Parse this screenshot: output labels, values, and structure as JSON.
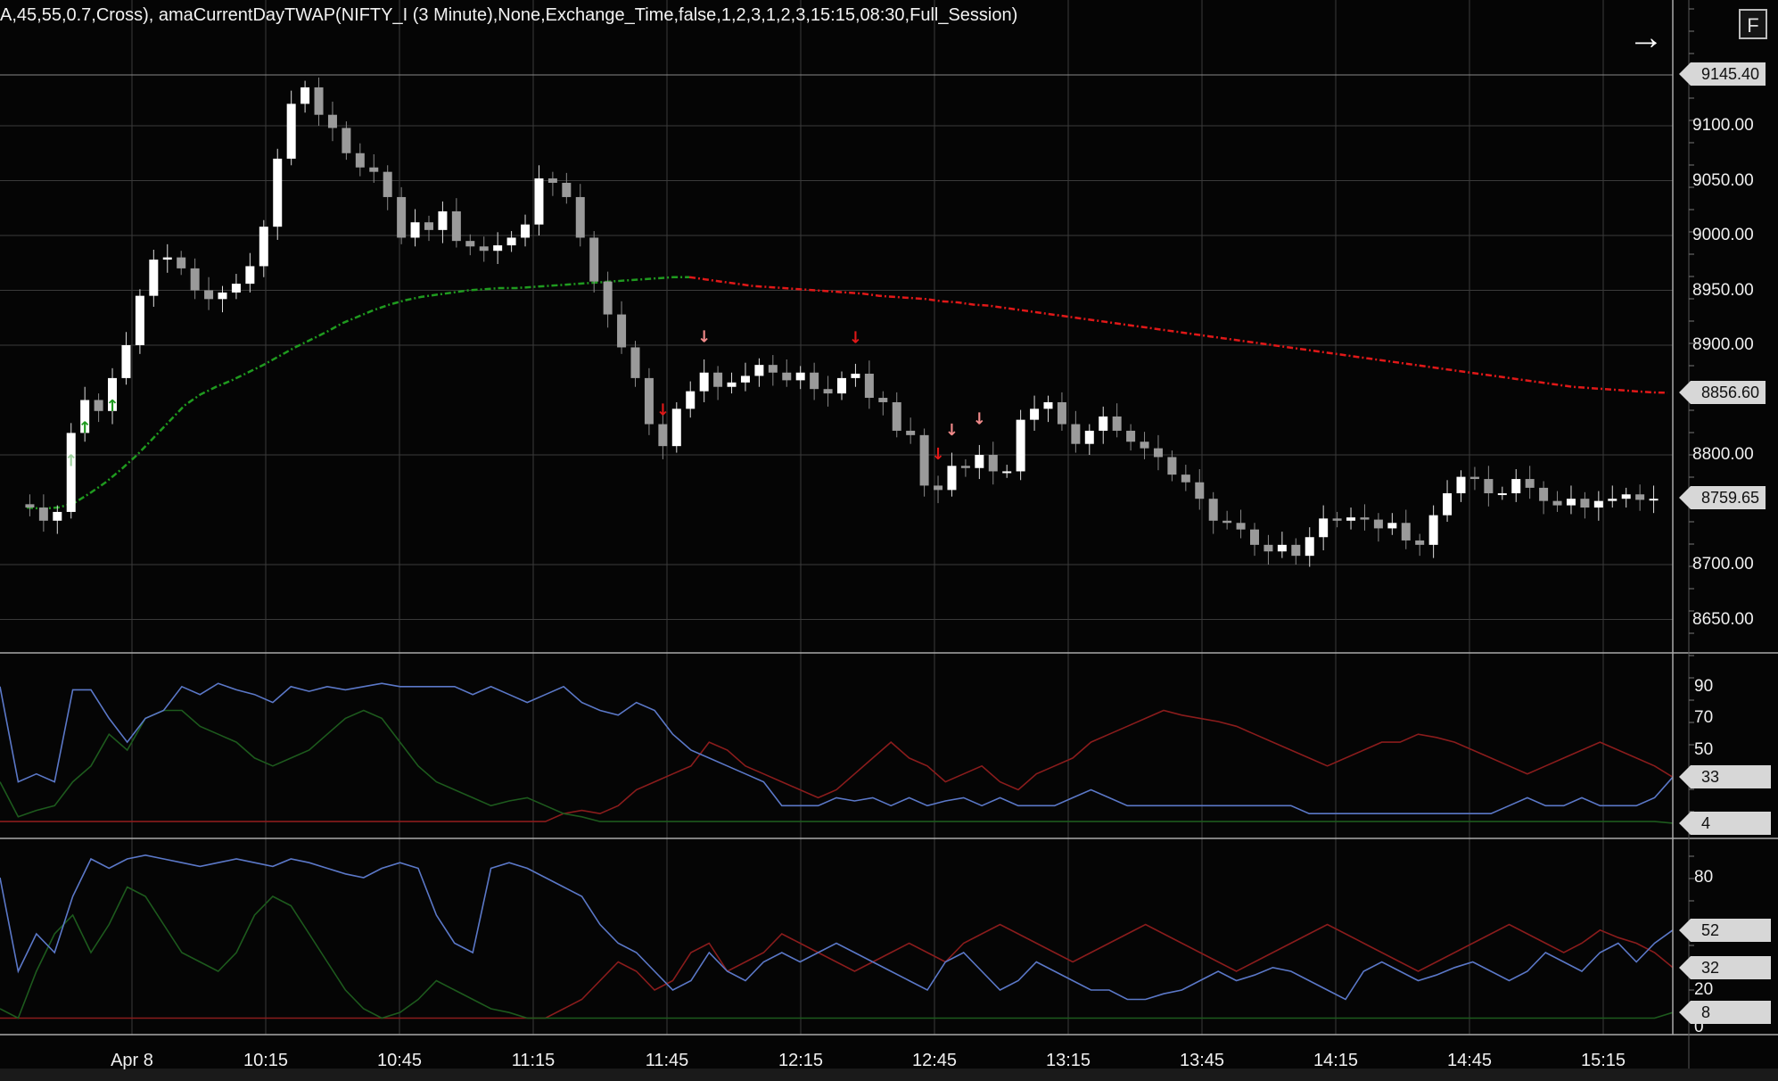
{
  "header": {
    "indicator_text": "A,45,55,0.7,Cross), amaCurrentDayTWAP(NIFTY_I (3 Minute),None,Exchange_Time,false,1,2,3,1,2,3,15:15,08:30,Full_Session)",
    "arrow_icon": "arrow-right-icon",
    "f_label": "F"
  },
  "price_axis": {
    "labels": [
      "9100.00",
      "9050.00",
      "9000.00",
      "8950.00",
      "8900.00",
      "8800.00",
      "8700.00",
      "8650.00"
    ],
    "values": [
      9100,
      9050,
      9000,
      8950,
      8900,
      8800,
      8700,
      8650
    ],
    "tags": {
      "high": "9145.40",
      "twap": "8856.60",
      "last": "8759.65"
    }
  },
  "osc1_axis": {
    "labels": [
      "90",
      "70",
      "50"
    ],
    "values": [
      90,
      70,
      50
    ],
    "tags": [
      "33",
      "4"
    ],
    "tag_values": [
      33,
      4
    ]
  },
  "osc2_axis": {
    "labels": [
      "80",
      "20",
      "0"
    ],
    "values": [
      80,
      20,
      0
    ],
    "tags": [
      "52",
      "32",
      "8"
    ],
    "tag_values": [
      52,
      32,
      8
    ]
  },
  "time_axis": {
    "labels": [
      "Apr 8",
      "10:15",
      "10:45",
      "11:15",
      "11:45",
      "12:15",
      "12:45",
      "13:15",
      "13:45",
      "14:15",
      "14:45",
      "15:15"
    ],
    "bar_index": [
      0,
      30,
      60,
      90,
      120,
      150,
      180,
      210,
      240,
      270,
      300,
      330
    ]
  },
  "colors": {
    "background": "#050505",
    "grid": "#3a3a3a",
    "up_candle": "#ffffff",
    "down_candle": "#9a9a9a",
    "twap_up": "#1f9a1f",
    "twap_down": "#e01818",
    "blue_line": "#5b78c8",
    "green_line": "#1d5a1d",
    "red_line": "#8a1c1c"
  },
  "chart_data": {
    "type": "candlestick",
    "timeframe": "3 Minute",
    "symbol": "NIFTY_I",
    "close_path": [
      8755,
      8752,
      8740,
      8748,
      8820,
      8850,
      8840,
      8870,
      8900,
      8945,
      8978,
      8980,
      8970,
      8950,
      8942,
      8948,
      8956,
      8972,
      9008,
      9070,
      9120,
      9135,
      9110,
      9098,
      9075,
      9062,
      9058,
      9035,
      8998,
      9012,
      9005,
      9022,
      8995,
      8990,
      8986,
      8991,
      8998,
      9010,
      9052,
      9048,
      9035,
      8998,
      8958,
      8928,
      8898,
      8870,
      8828,
      8808,
      8842,
      8858,
      8875,
      8862,
      8866,
      8872,
      8882,
      8875,
      8868,
      8875,
      8860,
      8856,
      8870,
      8874,
      8852,
      8848,
      8822,
      8818,
      8772,
      8768,
      8790,
      8788,
      8800,
      8785,
      8785,
      8832,
      8842,
      8848,
      8828,
      8810,
      8822,
      8835,
      8822,
      8812,
      8806,
      8798,
      8782,
      8775,
      8760,
      8740,
      8738,
      8732,
      8718,
      8712,
      8718,
      8708,
      8725,
      8742,
      8740,
      8743,
      8741,
      8733,
      8738,
      8722,
      8718,
      8745,
      8765,
      8780,
      8778,
      8765,
      8765,
      8778,
      8770,
      8758,
      8754,
      8760,
      8752,
      8758,
      8760,
      8764,
      8759,
      8760
    ],
    "twap_path": [
      8752,
      8751,
      8752,
      8756,
      8765,
      8775,
      8787,
      8800,
      8815,
      8830,
      8845,
      8855,
      8862,
      8868,
      8875,
      8882,
      8890,
      8898,
      8905,
      8912,
      8920,
      8926,
      8932,
      8937,
      8941,
      8944,
      8946,
      8948,
      8950,
      8951,
      8952,
      8952,
      8953,
      8954,
      8955,
      8956,
      8957,
      8958,
      8959,
      8960,
      8961,
      8962,
      8962,
      8960,
      8958,
      8956,
      8954,
      8953,
      8952,
      8951,
      8950,
      8949,
      8948,
      8947,
      8945,
      8944,
      8943,
      8942,
      8940,
      8939,
      8937,
      8936,
      8934,
      8932,
      8930,
      8928,
      8926,
      8924,
      8922,
      8920,
      8918,
      8916,
      8914,
      8912,
      8910,
      8908,
      8906,
      8904,
      8902,
      8900,
      8898,
      8896,
      8894,
      8892,
      8890,
      8888,
      8886,
      8884,
      8882,
      8880,
      8878,
      8876,
      8874,
      8872,
      8870,
      8868,
      8866,
      8864,
      8862,
      8861,
      8860,
      8859,
      8858,
      8857,
      8856.6
    ],
    "signals_up": [
      4,
      5,
      7
    ],
    "signals_down_strong": [
      47,
      61,
      67
    ],
    "signals_down_weak": [
      50,
      68,
      70
    ],
    "oscillator1": {
      "blue": [
        90,
        30,
        35,
        30,
        88,
        88,
        70,
        55,
        70,
        75,
        90,
        85,
        92,
        88,
        85,
        80,
        90,
        87,
        90,
        88,
        90,
        92,
        90,
        90,
        90,
        90,
        85,
        90,
        85,
        80,
        85,
        90,
        80,
        75,
        72,
        80,
        75,
        60,
        50,
        45,
        40,
        35,
        30,
        15,
        15,
        15,
        20,
        18,
        20,
        15,
        20,
        15,
        18,
        20,
        15,
        20,
        15,
        15,
        15,
        20,
        25,
        20,
        15,
        15,
        15,
        15,
        15,
        15,
        15,
        15,
        15,
        15,
        10,
        10,
        10,
        10,
        10,
        10,
        10,
        10,
        10,
        10,
        10,
        15,
        20,
        15,
        15,
        20,
        15,
        15,
        15,
        20,
        33
      ],
      "green": [
        30,
        8,
        12,
        15,
        30,
        40,
        60,
        50,
        70,
        75,
        75,
        65,
        60,
        55,
        45,
        40,
        45,
        50,
        60,
        70,
        75,
        70,
        55,
        40,
        30,
        25,
        20,
        15,
        18,
        20,
        15,
        10,
        8,
        5,
        5,
        5,
        5,
        5,
        5,
        5,
        5,
        5,
        5,
        5,
        5,
        5,
        5,
        5,
        5,
        5,
        5,
        5,
        5,
        5,
        5,
        5,
        5,
        5,
        5,
        5,
        5,
        5,
        5,
        5,
        5,
        5,
        5,
        5,
        5,
        5,
        5,
        5,
        5,
        5,
        5,
        5,
        5,
        5,
        5,
        5,
        5,
        5,
        5,
        5,
        5,
        5,
        5,
        5,
        5,
        5,
        5,
        5,
        4
      ],
      "red": [
        5,
        5,
        5,
        5,
        5,
        5,
        5,
        5,
        5,
        5,
        5,
        5,
        5,
        5,
        5,
        5,
        5,
        5,
        5,
        5,
        5,
        5,
        5,
        5,
        5,
        5,
        5,
        5,
        5,
        5,
        5,
        10,
        12,
        10,
        15,
        25,
        30,
        35,
        40,
        55,
        50,
        40,
        35,
        30,
        25,
        20,
        25,
        35,
        45,
        55,
        45,
        40,
        30,
        35,
        40,
        30,
        25,
        35,
        40,
        45,
        55,
        60,
        65,
        70,
        75,
        72,
        70,
        68,
        65,
        60,
        55,
        50,
        45,
        40,
        45,
        50,
        55,
        55,
        60,
        58,
        55,
        50,
        45,
        40,
        35,
        40,
        45,
        50,
        55,
        50,
        45,
        40,
        33
      ]
    },
    "oscillator2": {
      "blue": [
        80,
        30,
        50,
        40,
        70,
        90,
        85,
        90,
        92,
        90,
        88,
        86,
        88,
        90,
        88,
        86,
        90,
        88,
        85,
        82,
        80,
        85,
        88,
        85,
        60,
        45,
        40,
        85,
        88,
        85,
        80,
        75,
        70,
        55,
        45,
        40,
        30,
        20,
        25,
        40,
        30,
        25,
        35,
        40,
        35,
        40,
        45,
        40,
        35,
        30,
        25,
        20,
        35,
        40,
        30,
        20,
        25,
        35,
        30,
        25,
        20,
        20,
        15,
        15,
        18,
        20,
        25,
        30,
        25,
        28,
        32,
        30,
        25,
        20,
        15,
        30,
        35,
        30,
        25,
        28,
        32,
        35,
        30,
        25,
        30,
        40,
        35,
        30,
        40,
        45,
        35,
        45,
        52
      ],
      "green": [
        10,
        5,
        30,
        50,
        60,
        40,
        55,
        75,
        70,
        55,
        40,
        35,
        30,
        40,
        60,
        70,
        65,
        50,
        35,
        20,
        10,
        5,
        8,
        15,
        25,
        20,
        15,
        10,
        8,
        5,
        5,
        5,
        5,
        5,
        5,
        5,
        5,
        5,
        5,
        5,
        5,
        5,
        5,
        5,
        5,
        5,
        5,
        5,
        5,
        5,
        5,
        5,
        5,
        5,
        5,
        5,
        5,
        5,
        5,
        5,
        5,
        5,
        5,
        5,
        5,
        5,
        5,
        5,
        5,
        5,
        5,
        5,
        5,
        5,
        5,
        5,
        5,
        5,
        5,
        5,
        5,
        5,
        5,
        5,
        5,
        5,
        5,
        5,
        5,
        5,
        5,
        5,
        8
      ],
      "red": [
        5,
        5,
        5,
        5,
        5,
        5,
        5,
        5,
        5,
        5,
        5,
        5,
        5,
        5,
        5,
        5,
        5,
        5,
        5,
        5,
        5,
        5,
        5,
        5,
        5,
        5,
        5,
        5,
        5,
        5,
        5,
        10,
        15,
        25,
        35,
        30,
        20,
        25,
        40,
        45,
        30,
        35,
        40,
        50,
        45,
        40,
        35,
        30,
        35,
        40,
        45,
        40,
        35,
        45,
        50,
        55,
        50,
        45,
        40,
        35,
        40,
        45,
        50,
        55,
        50,
        45,
        40,
        35,
        30,
        35,
        40,
        45,
        50,
        55,
        50,
        45,
        40,
        35,
        30,
        35,
        40,
        45,
        50,
        55,
        50,
        45,
        40,
        45,
        52,
        48,
        45,
        40,
        32
      ]
    }
  }
}
